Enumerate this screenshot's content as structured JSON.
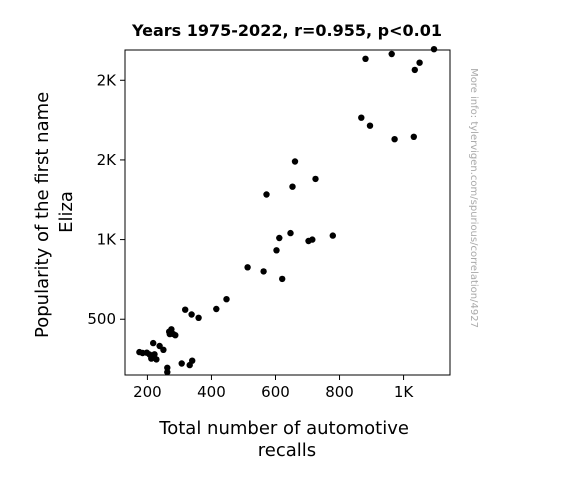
{
  "chart_data": {
    "type": "scatter",
    "title": "Years 1975-2022, r=0.955, p<0.01",
    "xlabel_lines": [
      "Total number of automotive",
      "recalls"
    ],
    "ylabel_lines": [
      "Popularity of the first name",
      "Eliza"
    ],
    "watermark": "More info: tylervigen.com/spurious/correlation/4927",
    "xlim": [
      130,
      1145
    ],
    "ylim": [
      150,
      2190
    ],
    "x_ticks": [
      {
        "value": 200,
        "label": "200"
      },
      {
        "value": 400,
        "label": "400"
      },
      {
        "value": 600,
        "label": "600"
      },
      {
        "value": 800,
        "label": "800"
      },
      {
        "value": 1000,
        "label": "1K"
      }
    ],
    "y_ticks": [
      {
        "value": 500,
        "label": "500"
      },
      {
        "value": 1000,
        "label": "1K"
      },
      {
        "value": 1500,
        "label": "2K"
      },
      {
        "value": 2000,
        "label": "2K"
      }
    ],
    "marker_color": "#000000",
    "x": [
      175,
      185,
      198,
      207,
      212,
      215,
      218,
      222,
      228,
      238,
      250,
      262,
      262,
      268,
      270,
      275,
      280,
      287,
      307,
      318,
      332,
      338,
      340,
      360,
      415,
      447,
      513,
      563,
      572,
      603,
      612,
      621,
      647,
      653,
      661,
      703,
      715,
      725,
      779,
      868,
      881,
      895,
      963,
      972,
      1032,
      1035,
      1050,
      1095
    ],
    "y": [
      294,
      288,
      290,
      278,
      253,
      258,
      350,
      280,
      248,
      332,
      308,
      195,
      168,
      422,
      407,
      437,
      408,
      400,
      222,
      560,
      212,
      530,
      240,
      509,
      564,
      626,
      826,
      800,
      1283,
      933,
      1010,
      753,
      1041,
      1332,
      1490,
      991,
      1000,
      1381,
      1025,
      1765,
      2135,
      1715,
      2165,
      1630,
      1645,
      2065,
      2110,
      2195
    ]
  }
}
